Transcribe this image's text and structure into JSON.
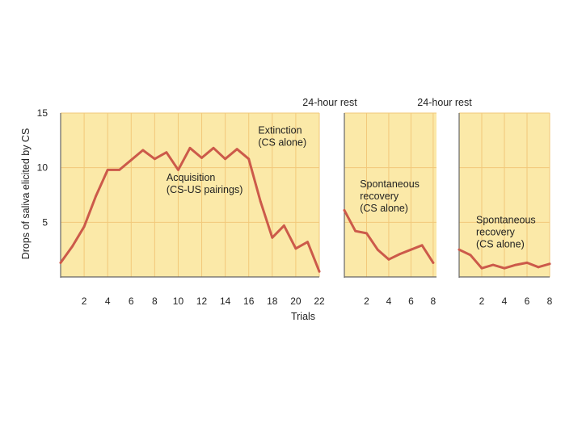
{
  "chart_data": {
    "type": "line",
    "ylabel": "Drops of saliva elicited by CS",
    "xlabel": "Trials",
    "ylim": [
      0,
      15
    ],
    "yticks": [
      5,
      10,
      15
    ],
    "colors": {
      "line": "#cc5a4a",
      "panel": "#fbe9a8",
      "grid": "#f2c87a",
      "frame": "#666666"
    },
    "rest_labels": [
      "24-hour rest",
      "24-hour rest"
    ],
    "panels": [
      {
        "xlim": [
          0,
          22
        ],
        "xticks": [
          2,
          4,
          6,
          8,
          10,
          12,
          14,
          16,
          18,
          20,
          22
        ],
        "x": [
          0,
          1,
          2,
          3,
          4,
          5,
          6,
          7,
          8,
          9,
          10,
          11,
          12,
          13,
          14,
          15,
          16,
          17,
          18,
          19,
          20,
          21,
          22
        ],
        "y": [
          1.3,
          2.8,
          4.6,
          7.4,
          9.8,
          9.8,
          10.7,
          11.6,
          10.8,
          11.4,
          9.8,
          11.8,
          10.9,
          11.8,
          10.8,
          11.7,
          10.8,
          6.9,
          3.6,
          4.7,
          2.6,
          3.2,
          0.5
        ],
        "annotations": [
          {
            "lines": [
              "Acquisition",
              "(CS-US pairings)"
            ],
            "x": 9,
            "y": 8.8
          },
          {
            "lines": [
              "Extinction",
              "(CS alone)"
            ],
            "x": 16.8,
            "y": 13.1
          }
        ]
      },
      {
        "xlim": [
          0,
          8.3
        ],
        "xticks": [
          2,
          4,
          6,
          8
        ],
        "x": [
          0,
          1,
          2,
          3,
          4,
          5,
          6,
          7,
          8
        ],
        "y": [
          6.1,
          4.2,
          4.0,
          2.5,
          1.6,
          2.1,
          2.5,
          2.9,
          1.3
        ],
        "annotations": [
          {
            "lines": [
              "Spontaneous",
              "recovery",
              "(CS alone)"
            ],
            "x": 1.4,
            "y": 8.2
          }
        ]
      },
      {
        "xlim": [
          0,
          8
        ],
        "xticks": [
          2,
          4,
          6,
          8
        ],
        "x": [
          0,
          1,
          2,
          3,
          4,
          5,
          6,
          7,
          8
        ],
        "y": [
          2.5,
          2.0,
          0.8,
          1.1,
          0.8,
          1.1,
          1.3,
          0.9,
          1.2
        ],
        "annotations": [
          {
            "lines": [
              "Spontaneous",
              "recovery",
              "(CS alone)"
            ],
            "x": 1.5,
            "y": 4.9
          }
        ]
      }
    ]
  }
}
